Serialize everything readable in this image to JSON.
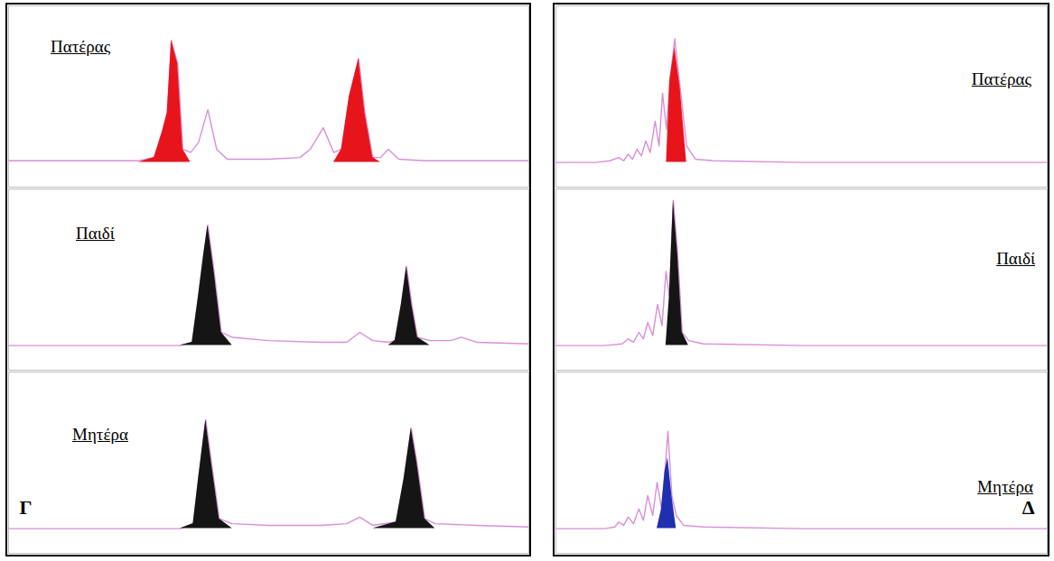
{
  "chart_data": [
    {
      "type": "line",
      "title": "Πατέρας",
      "x": [
        0,
        15,
        25,
        28,
        29.5,
        30.5,
        31.3,
        32.5,
        33.5,
        35,
        36.5,
        38.3,
        40,
        42,
        50,
        56,
        58,
        60.5,
        62.5,
        64,
        65.5,
        67.3,
        68.5,
        70,
        71.5,
        73,
        75,
        80,
        100
      ],
      "series": [
        {
          "color": "#d88fd8",
          "values": [
            1,
            1,
            1,
            3,
            18,
            30,
            74,
            60,
            8,
            6,
            12,
            32,
            8,
            2,
            2,
            3,
            8,
            21,
            6,
            8,
            40,
            63,
            30,
            3,
            3,
            8,
            2,
            1,
            1
          ]
        },
        {
          "type": "area",
          "color": "#e8141b",
          "values": [
            null,
            null,
            null,
            3,
            18,
            30,
            74,
            60,
            8,
            null,
            null,
            null,
            null,
            null,
            null,
            null,
            null,
            null,
            null,
            8,
            40,
            63,
            30,
            3,
            null,
            null,
            null,
            null,
            null
          ]
        }
      ],
      "xlim": [
        0,
        100
      ],
      "ylim": [
        -15,
        95
      ],
      "tick_labels": false
    },
    {
      "type": "line",
      "title": "Παιδί",
      "x": [
        0,
        20,
        33,
        35.3,
        36.5,
        37.5,
        38.3,
        39.5,
        40.9,
        43,
        50,
        60,
        65,
        67.5,
        70,
        73,
        74.3,
        75.5,
        76.5,
        77.5,
        78.6,
        81,
        85,
        87,
        90,
        100
      ],
      "series": [
        {
          "color": "#d88fd8",
          "values": [
            0,
            0,
            0,
            2,
            30,
            55,
            73,
            45,
            8,
            5,
            3,
            2,
            2,
            8,
            3,
            2,
            3,
            25,
            48,
            25,
            5,
            3,
            3,
            5,
            2,
            1
          ]
        },
        {
          "type": "area",
          "color": "#151515",
          "values": [
            null,
            null,
            null,
            2,
            30,
            55,
            73,
            45,
            8,
            null,
            null,
            null,
            null,
            null,
            null,
            null,
            3,
            25,
            48,
            25,
            5,
            null,
            null,
            null,
            null,
            null
          ]
        }
      ],
      "xlim": [
        0,
        100
      ],
      "ylim": [
        -15,
        95
      ],
      "tick_labels": false
    },
    {
      "type": "line",
      "title": "Μητέρα",
      "x": [
        0,
        20,
        33,
        35.5,
        36.5,
        37.9,
        39,
        40.5,
        43,
        50,
        60,
        65,
        67.5,
        70,
        74.5,
        76,
        77.4,
        78.5,
        80,
        82,
        90,
        100
      ],
      "series": [
        {
          "color": "#d88fd8",
          "values": [
            0,
            0,
            0,
            3,
            30,
            66,
            40,
            6,
            3,
            2,
            2,
            3,
            7,
            2,
            4,
            30,
            61,
            40,
            6,
            3,
            2,
            1
          ]
        },
        {
          "type": "area",
          "color": "#151515",
          "values": [
            null,
            null,
            null,
            3,
            30,
            66,
            40,
            6,
            null,
            null,
            null,
            null,
            null,
            null,
            4,
            30,
            61,
            40,
            6,
            null,
            null,
            null
          ]
        }
      ],
      "xlim": [
        0,
        100
      ],
      "ylim": [
        -15,
        95
      ],
      "tick_labels": false,
      "annotations": [
        "Γ"
      ]
    },
    {
      "type": "line",
      "title": "Πατέρας",
      "x": [
        0,
        8,
        11,
        12.8,
        13.8,
        14.7,
        15.6,
        16.5,
        17.4,
        18.3,
        19.2,
        20.2,
        21,
        21.7,
        22.5,
        23.2,
        24.2,
        25.3,
        26.6,
        28.4,
        32,
        50,
        100
      ],
      "series": [
        {
          "color": "#d88fd8",
          "values": [
            0,
            0,
            1,
            3,
            1,
            5,
            2,
            8,
            4,
            13,
            6,
            25,
            10,
            42,
            20,
            50,
            75,
            45,
            10,
            2,
            1,
            0,
            0
          ]
        },
        {
          "type": "area",
          "color": "#e8141b",
          "values": [
            null,
            null,
            null,
            null,
            null,
            null,
            null,
            null,
            null,
            null,
            null,
            null,
            null,
            null,
            null,
            50,
            70,
            45,
            null,
            null,
            null,
            null,
            null
          ]
        }
      ],
      "xlim": [
        0,
        100
      ],
      "ylim": [
        -15,
        95
      ],
      "tick_labels": false
    },
    {
      "type": "line",
      "title": "Παιδί",
      "x": [
        0,
        10,
        13.5,
        14.7,
        15.8,
        16.9,
        17.8,
        18.7,
        19.7,
        20.7,
        21.6,
        22.4,
        23.1,
        23.9,
        24.8,
        25.7,
        27,
        30,
        50,
        100
      ],
      "series": [
        {
          "color": "#d88fd8",
          "values": [
            0,
            0,
            1,
            4,
            2,
            8,
            4,
            14,
            6,
            25,
            12,
            45,
            30,
            88,
            55,
            8,
            3,
            1,
            0,
            0
          ]
        },
        {
          "type": "area",
          "color": "#151515",
          "values": [
            null,
            null,
            null,
            null,
            null,
            null,
            null,
            null,
            null,
            null,
            null,
            null,
            30,
            88,
            55,
            8,
            null,
            null,
            null,
            null
          ]
        }
      ],
      "xlim": [
        0,
        100
      ],
      "ylim": [
        -15,
        95
      ],
      "tick_labels": false
    },
    {
      "type": "line",
      "title": "Μητέρα",
      "x": [
        0,
        10,
        12,
        12.8,
        13.8,
        14.7,
        15.8,
        16.9,
        17.8,
        18.7,
        19.7,
        20.6,
        21.5,
        22.2,
        22.8,
        23.6,
        24.5,
        26,
        30,
        50,
        100
      ],
      "series": [
        {
          "color": "#d88fd8",
          "values": [
            0,
            0,
            1,
            4,
            2,
            7,
            3,
            12,
            5,
            20,
            8,
            28,
            12,
            35,
            59,
            20,
            8,
            2,
            1,
            0,
            0
          ]
        },
        {
          "type": "area",
          "color": "#1f2fb0",
          "values": [
            null,
            null,
            null,
            null,
            null,
            null,
            null,
            null,
            null,
            null,
            null,
            null,
            12,
            35,
            43,
            20,
            null,
            null,
            null,
            null,
            null
          ]
        }
      ],
      "xlim": [
        0,
        100
      ],
      "ylim": [
        -15,
        95
      ],
      "tick_labels": false,
      "annotations": [
        "Δ"
      ]
    }
  ]
}
